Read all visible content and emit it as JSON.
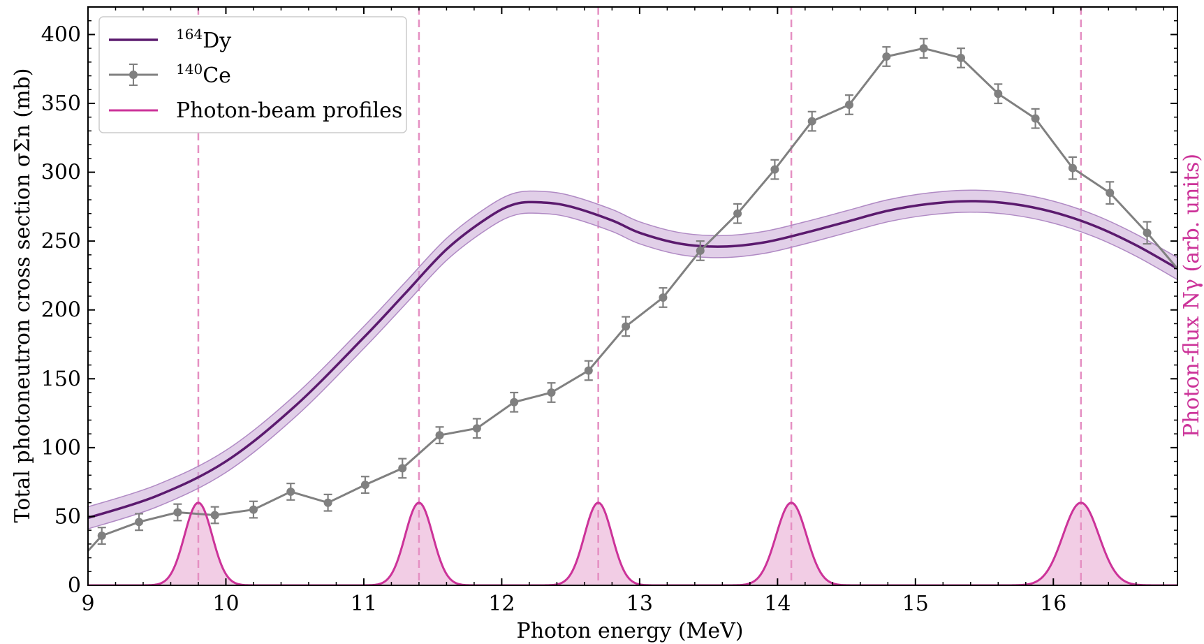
{
  "chart_data": {
    "type": "line",
    "xlabel": "Photon energy (MeV)",
    "ylabel": "Total photoneutron cross section σΣn (mb)",
    "y2label": "Photon-flux Nγ (arb. units)",
    "xlim": [
      9,
      16.9
    ],
    "ylim": [
      0,
      420
    ],
    "xticks": [
      9,
      10,
      11,
      12,
      13,
      14,
      15,
      16
    ],
    "yticks": [
      0,
      50,
      100,
      150,
      200,
      250,
      300,
      350,
      400
    ],
    "grid": false,
    "legend_position": "upper-left",
    "colors": {
      "dy": "#5b1a6e",
      "dy_band": "#c8a8d6",
      "ce": "#808080",
      "beam": "#cc3399",
      "beam_fill": "#f0c4e0",
      "beam_dash": "#e58fc2",
      "y2label": "#cc3399"
    },
    "legend": [
      {
        "sup": "164",
        "base": "Dy"
      },
      {
        "sup": "140",
        "base": "Ce"
      },
      {
        "sup": "",
        "base": "Photon-beam profiles"
      }
    ],
    "series": [
      {
        "name": "164Dy",
        "kind": "band-line",
        "band_halfwidth": 8,
        "x": [
          9.0,
          9.5,
          10.0,
          10.5,
          11.0,
          11.3,
          11.6,
          11.9,
          12.1,
          12.3,
          12.5,
          12.8,
          13.0,
          13.3,
          13.6,
          13.9,
          14.2,
          14.5,
          14.8,
          15.1,
          15.4,
          15.7,
          16.0,
          16.3,
          16.6,
          16.9
        ],
        "y": [
          49,
          65,
          90,
          130,
          180,
          212,
          244,
          267,
          277,
          278,
          275,
          265,
          256,
          248,
          246,
          249,
          256,
          264,
          272,
          277,
          279,
          277,
          271,
          261,
          247,
          230
        ]
      },
      {
        "name": "140Ce",
        "kind": "errorbar-line",
        "x": [
          9.0,
          9.1,
          9.37,
          9.65,
          9.92,
          10.2,
          10.47,
          10.74,
          11.01,
          11.28,
          11.55,
          11.82,
          12.09,
          12.36,
          12.63,
          12.9,
          13.17,
          13.44,
          13.71,
          13.98,
          14.25,
          14.52,
          14.79,
          15.06,
          15.33,
          15.6,
          15.87,
          16.14,
          16.41,
          16.68,
          16.9
        ],
        "y": [
          25,
          36,
          46,
          53,
          51,
          55,
          68,
          60,
          73,
          85,
          109,
          114,
          133,
          140,
          156,
          188,
          209,
          243,
          270,
          302,
          337,
          349,
          384,
          390,
          383,
          357,
          339,
          303,
          285,
          256,
          230
        ],
        "err": [
          null,
          6,
          6,
          6,
          6,
          6,
          6,
          6,
          6,
          7,
          6,
          7,
          7,
          7,
          7,
          7,
          7,
          7,
          7,
          7,
          7,
          7,
          7,
          7,
          7,
          7,
          7,
          8,
          8,
          8,
          null
        ]
      },
      {
        "name": "Photon-beam profiles",
        "kind": "gaussians",
        "centers": [
          9.8,
          11.4,
          12.7,
          14.1,
          16.2
        ],
        "sigmas": [
          0.1,
          0.1,
          0.1,
          0.11,
          0.13
        ],
        "peak": 60
      }
    ]
  }
}
